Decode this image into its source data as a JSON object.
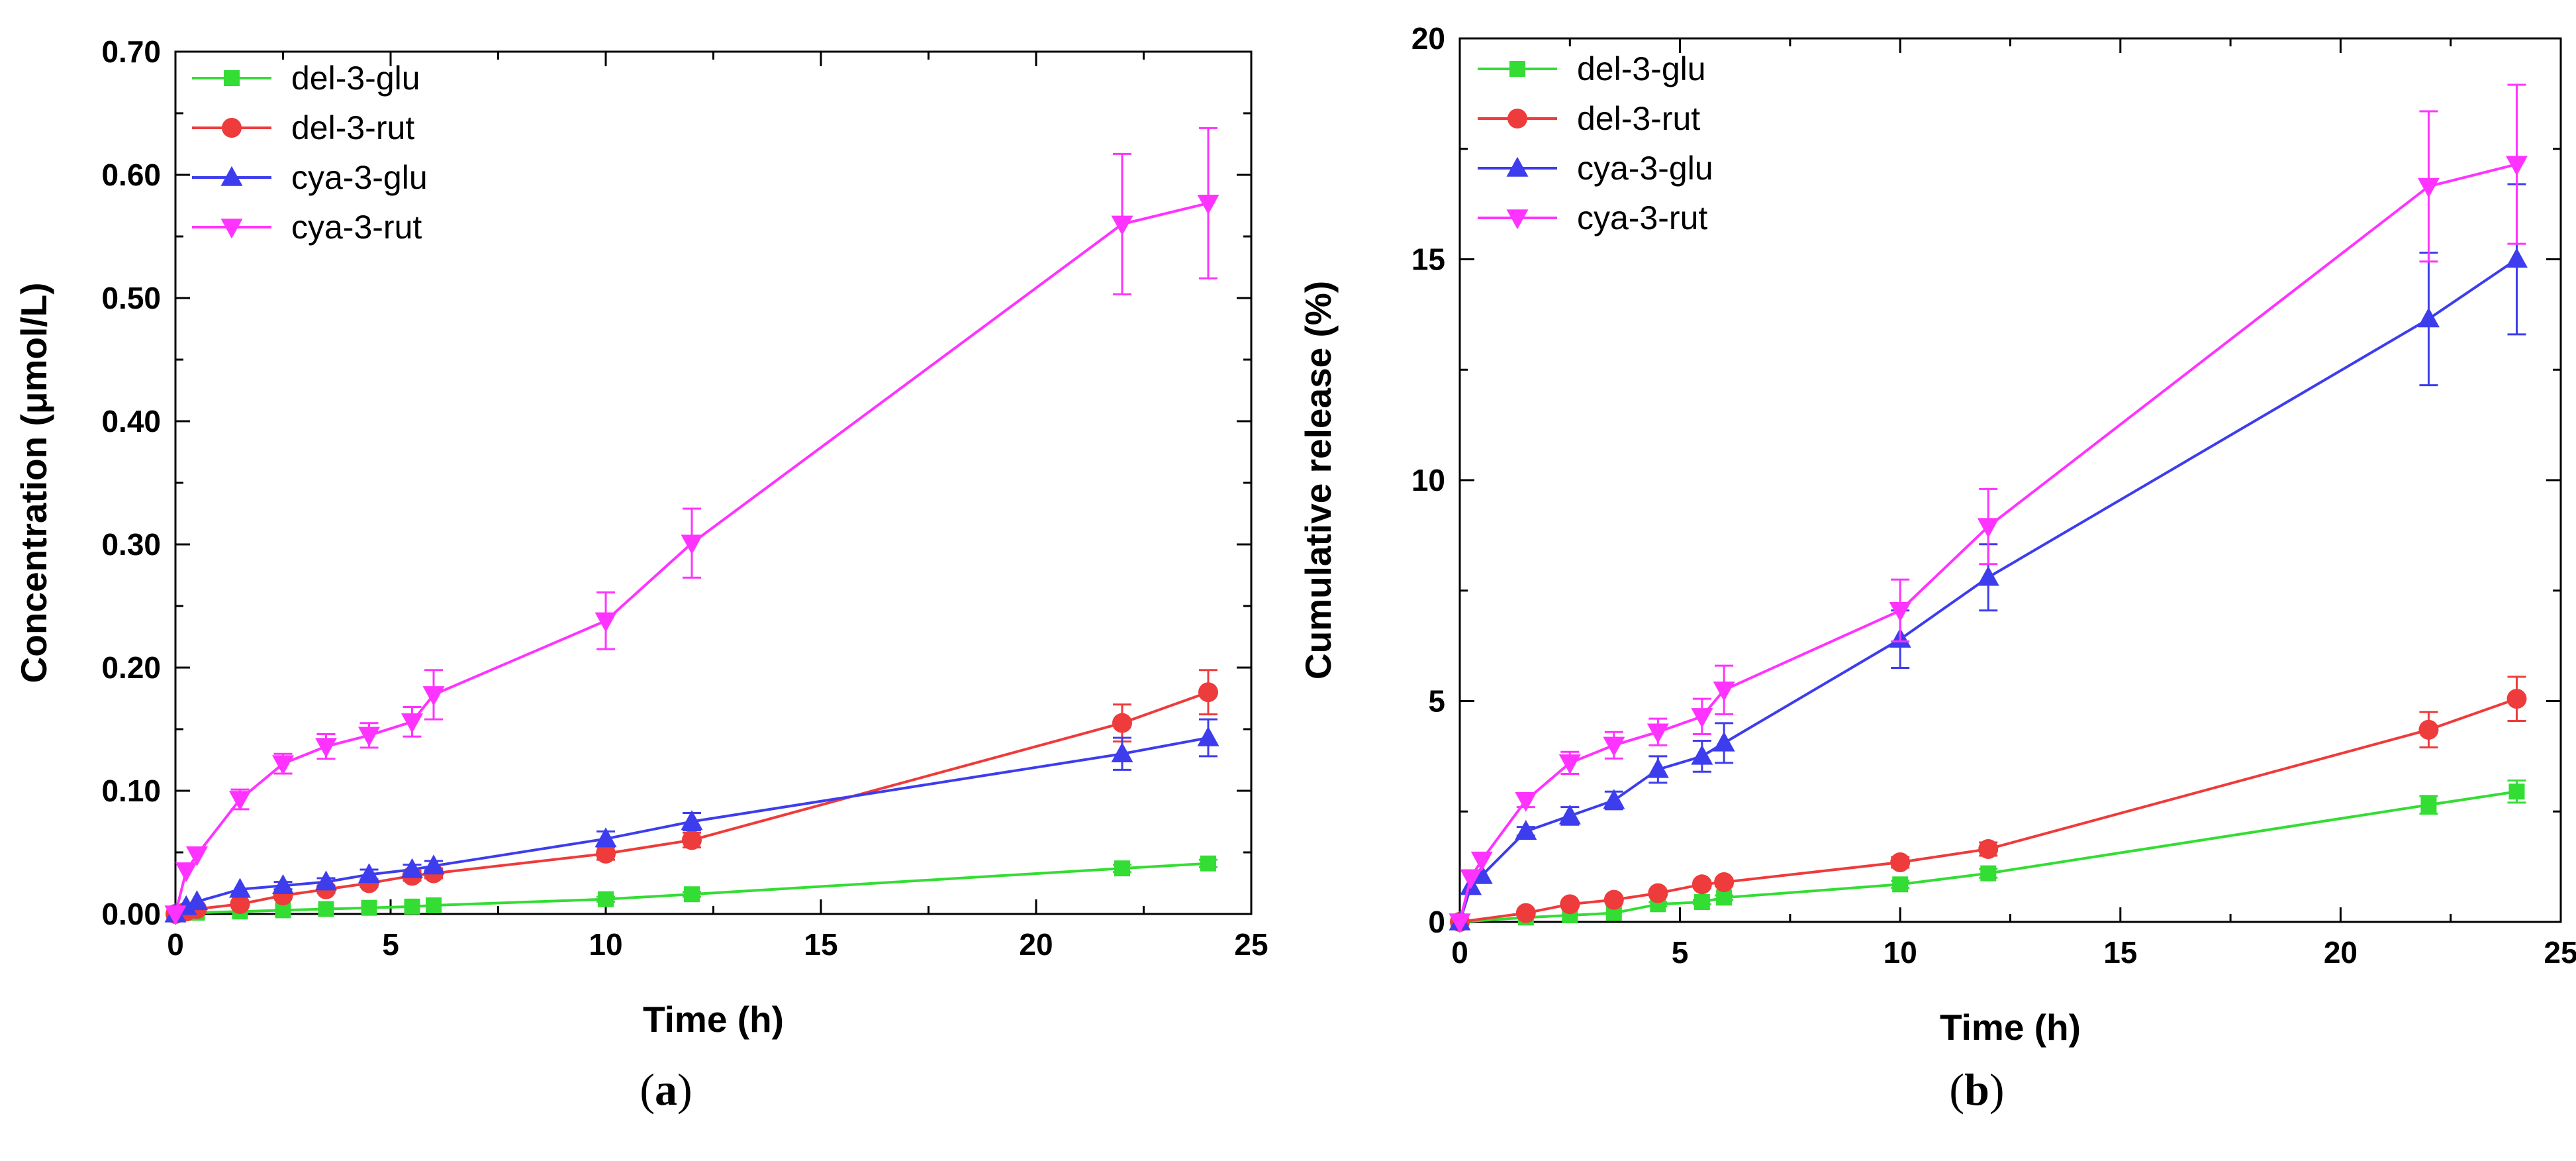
{
  "chart_data": [
    {
      "type": "line",
      "panel_label": "a",
      "title": "",
      "xlabel": "Time (h)",
      "ylabel": "Concentration (μmol/L)",
      "xlim": [
        0,
        25
      ],
      "ylim": [
        0,
        0.7
      ],
      "xticks": [
        0,
        5,
        10,
        15,
        20,
        25
      ],
      "xtick_labels": [
        "0",
        "5",
        "10",
        "15",
        "20",
        "25"
      ],
      "yticks": [
        0,
        0.1,
        0.2,
        0.3,
        0.4,
        0.5,
        0.6,
        0.7
      ],
      "ytick_labels": [
        "0.00",
        "0.10",
        "0.20",
        "0.30",
        "0.40",
        "0.50",
        "0.60",
        "0.70"
      ],
      "legend_position": "top-left",
      "series": [
        {
          "name": "del-3-glu",
          "color": "#33dd33",
          "marker": "square",
          "x": [
            0,
            0.25,
            0.5,
            1.5,
            2.5,
            3.5,
            4.5,
            5.5,
            6,
            10,
            12,
            22,
            24
          ],
          "y": [
            0,
            0.001,
            0.001,
            0.002,
            0.003,
            0.004,
            0.005,
            0.006,
            0.007,
            0.012,
            0.016,
            0.037,
            0.041
          ],
          "err": [
            0,
            0,
            0,
            0,
            0,
            0,
            0,
            0,
            0,
            0.002,
            0.002,
            0.003,
            0.003
          ]
        },
        {
          "name": "del-3-rut",
          "color": "#ee3b3b",
          "marker": "circle",
          "x": [
            0,
            0.25,
            0.5,
            1.5,
            2.5,
            3.5,
            4.5,
            5.5,
            6,
            10,
            12,
            22,
            24
          ],
          "y": [
            0,
            0.002,
            0.004,
            0.008,
            0.015,
            0.02,
            0.025,
            0.031,
            0.033,
            0.049,
            0.06,
            0.155,
            0.18
          ],
          "err": [
            0,
            0,
            0,
            0,
            0,
            0.003,
            0.003,
            0.004,
            0.004,
            0.005,
            0.006,
            0.015,
            0.018
          ]
        },
        {
          "name": "cya-3-glu",
          "color": "#3d3dee",
          "marker": "triangle-up",
          "x": [
            0,
            0.25,
            0.5,
            1.5,
            2.5,
            3.5,
            4.5,
            5.5,
            6,
            10,
            12,
            22,
            24
          ],
          "y": [
            0,
            0.006,
            0.01,
            0.02,
            0.023,
            0.026,
            0.032,
            0.036,
            0.039,
            0.061,
            0.075,
            0.13,
            0.143
          ],
          "err": [
            0,
            0,
            0,
            0,
            0.003,
            0.003,
            0.004,
            0.004,
            0.004,
            0.006,
            0.007,
            0.013,
            0.015
          ]
        },
        {
          "name": "cya-3-rut",
          "color": "#ff33ff",
          "marker": "triangle-down",
          "x": [
            0,
            0.25,
            0.5,
            1.5,
            2.5,
            3.5,
            4.5,
            5.5,
            6,
            10,
            12,
            22,
            24
          ],
          "y": [
            0,
            0.035,
            0.048,
            0.093,
            0.122,
            0.136,
            0.145,
            0.156,
            0.178,
            0.238,
            0.301,
            0.56,
            0.577
          ],
          "err": [
            0,
            0,
            0,
            0.008,
            0.008,
            0.01,
            0.01,
            0.012,
            0.02,
            0.023,
            0.028,
            0.057,
            0.061
          ]
        }
      ]
    },
    {
      "type": "line",
      "panel_label": "b",
      "title": "",
      "xlabel": "Time (h)",
      "ylabel": "Cumulative release (%)",
      "xlim": [
        0,
        25
      ],
      "ylim": [
        0,
        20
      ],
      "xticks": [
        0,
        5,
        10,
        15,
        20,
        25
      ],
      "xtick_labels": [
        "0",
        "5",
        "10",
        "15",
        "20",
        "25"
      ],
      "yticks": [
        0,
        5,
        10,
        15,
        20
      ],
      "ytick_labels": [
        "0",
        "5",
        "10",
        "15",
        "20"
      ],
      "legend_position": "top-left",
      "series": [
        {
          "name": "del-3-glu",
          "color": "#33dd33",
          "marker": "square",
          "x": [
            0,
            1.5,
            2.5,
            3.5,
            4.5,
            5.5,
            6,
            10,
            12,
            22,
            24
          ],
          "y": [
            0,
            0.1,
            0.15,
            0.2,
            0.4,
            0.45,
            0.55,
            0.85,
            1.1,
            2.65,
            2.95
          ],
          "err": [
            0,
            0,
            0,
            0,
            0.05,
            0.05,
            0.05,
            0.08,
            0.1,
            0.2,
            0.25
          ]
        },
        {
          "name": "del-3-rut",
          "color": "#ee3b3b",
          "marker": "circle",
          "x": [
            0,
            1.5,
            2.5,
            3.5,
            4.5,
            5.5,
            6,
            10,
            12,
            22,
            24
          ],
          "y": [
            0,
            0.2,
            0.4,
            0.5,
            0.65,
            0.85,
            0.9,
            1.35,
            1.65,
            4.35,
            5.05
          ],
          "err": [
            0,
            0,
            0,
            0.05,
            0.05,
            0.08,
            0.08,
            0.12,
            0.15,
            0.4,
            0.5
          ]
        },
        {
          "name": "cya-3-glu",
          "color": "#3d3dee",
          "marker": "triangle-up",
          "x": [
            0,
            0.25,
            0.5,
            1.5,
            2.5,
            3.5,
            4.5,
            5.5,
            6,
            10,
            12,
            22,
            24
          ],
          "y": [
            0,
            0.8,
            1.05,
            2.05,
            2.4,
            2.75,
            3.45,
            3.75,
            4.05,
            6.4,
            7.8,
            13.65,
            15.0
          ],
          "err": [
            0,
            0,
            0,
            0.1,
            0.2,
            0.2,
            0.3,
            0.35,
            0.45,
            0.65,
            0.75,
            1.5,
            1.7
          ]
        },
        {
          "name": "cya-3-rut",
          "color": "#ff33ff",
          "marker": "triangle-down",
          "x": [
            0,
            0.25,
            0.5,
            1.5,
            2.5,
            3.5,
            4.5,
            5.5,
            6,
            10,
            12,
            22,
            24
          ],
          "y": [
            0,
            1.0,
            1.4,
            2.75,
            3.6,
            4.0,
            4.3,
            4.65,
            5.25,
            7.05,
            8.95,
            16.65,
            17.15
          ],
          "err": [
            0,
            0,
            0,
            0.15,
            0.25,
            0.3,
            0.3,
            0.4,
            0.55,
            0.7,
            0.85,
            1.7,
            1.8
          ]
        }
      ]
    }
  ]
}
